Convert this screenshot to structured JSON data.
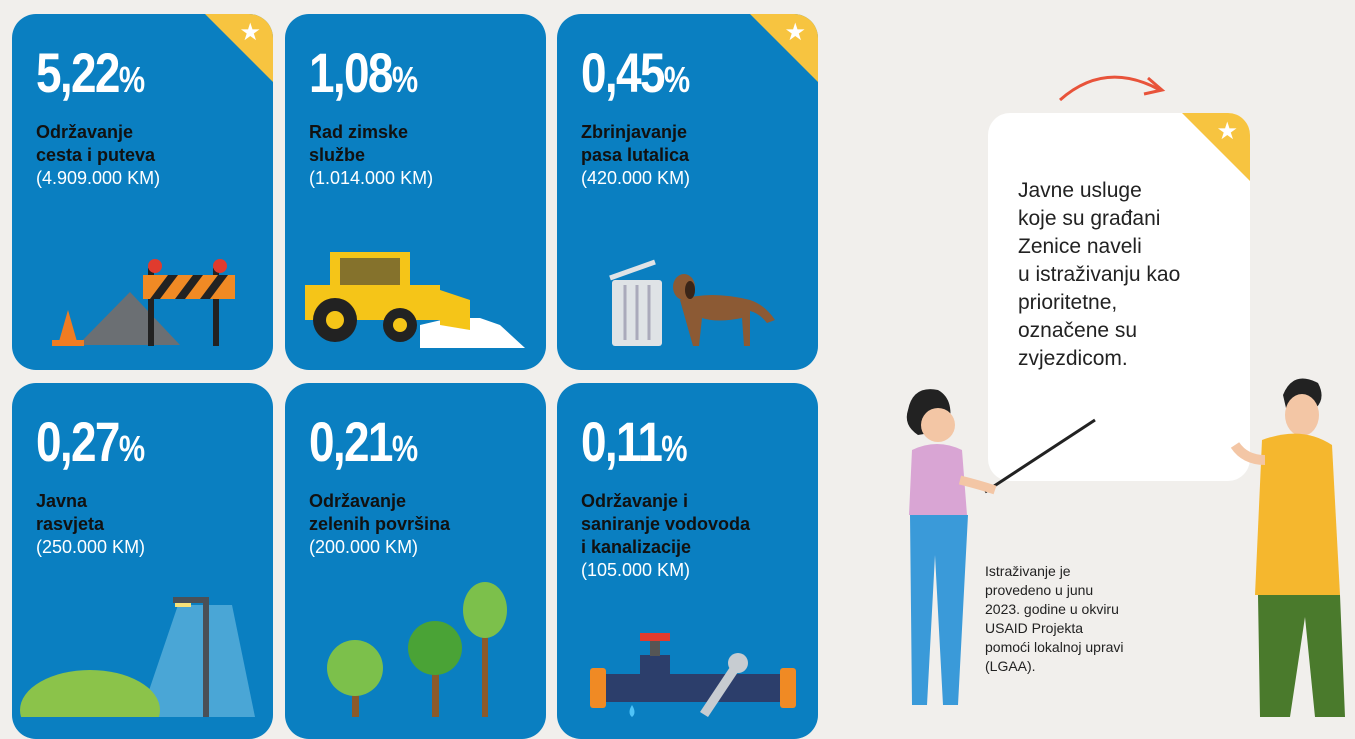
{
  "cards": [
    {
      "value": "5,22",
      "unit": "%",
      "title": [
        "Održavanje",
        "cesta i puteva"
      ],
      "amount": "(4.909.000 KM)",
      "starred": true
    },
    {
      "value": "1,08",
      "unit": "%",
      "title": [
        "Rad zimske",
        "službe"
      ],
      "amount": "(1.014.000 KM)",
      "starred": false
    },
    {
      "value": "0,45",
      "unit": "%",
      "title": [
        "Zbrinjavanje",
        "pasa lutalica"
      ],
      "amount": "(420.000 KM)",
      "starred": true
    },
    {
      "value": "0,27",
      "unit": "%",
      "title": [
        "Javna",
        "rasvjeta"
      ],
      "amount": "(250.000 KM)",
      "starred": false
    },
    {
      "value": "0,21",
      "unit": "%",
      "title": [
        "Održavanje",
        "zelenih površina"
      ],
      "amount": "(200.000 KM)",
      "starred": false
    },
    {
      "value": "0,11",
      "unit": "%",
      "title": [
        "Održavanje i",
        "saniranje vodovoda",
        "i kanalizacije"
      ],
      "amount": "(105.000 KM)",
      "starred": false
    }
  ],
  "note": {
    "lines": [
      "Javne usluge",
      "koje su građani",
      "Zenice naveli",
      "u istraživanju kao",
      "prioritetne,",
      "označene su",
      "zvjezdicom."
    ],
    "star": "★"
  },
  "footnote": [
    "Istraživanje je",
    "provedeno u junu",
    "2023. godine u okviru",
    "USAID Projekta",
    "pomoći lokalnoj upravi",
    "(LGAA)."
  ]
}
